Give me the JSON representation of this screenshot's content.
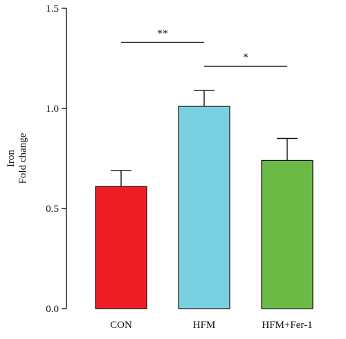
{
  "chart_data": {
    "type": "bar",
    "title": "",
    "xlabel": "",
    "ylabel_lines": [
      "Iron",
      "Fold change"
    ],
    "categories": [
      "CON",
      "HFM",
      "HFM+Fer-1"
    ],
    "values": [
      0.61,
      1.01,
      0.74
    ],
    "errors": [
      0.08,
      0.08,
      0.11
    ],
    "colors": [
      "#ee1c24",
      "#79d0e1",
      "#6aba45"
    ],
    "ylim": [
      0.0,
      1.5
    ],
    "yticks": [
      0.0,
      0.5,
      1.0,
      1.5
    ],
    "ytick_labels": [
      "0.0",
      "0.5",
      "1.0",
      "1.5"
    ],
    "grid": false,
    "legend": "none",
    "significance": [
      {
        "from": 0,
        "to": 1,
        "y": 1.33,
        "label": "**"
      },
      {
        "from": 1,
        "to": 2,
        "y": 1.21,
        "label": "*"
      }
    ]
  }
}
